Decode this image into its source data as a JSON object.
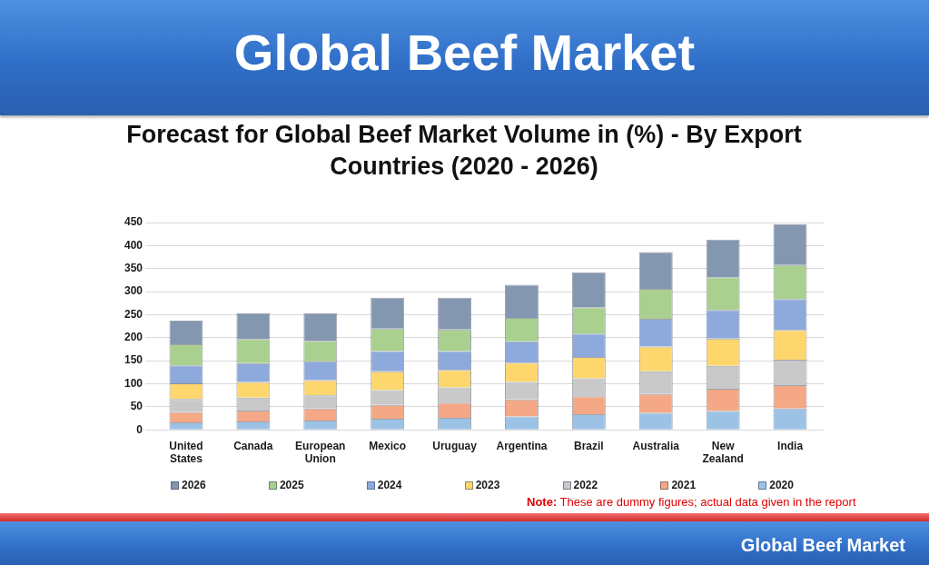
{
  "chart_data": {
    "type": "bar",
    "title": "Global Beef Market",
    "subtitle": "Forecast for Global Beef Market Volume in (%) - By Export Countries (2020 - 2026)",
    "categories": [
      "United States",
      "Canada",
      "European Union",
      "Mexico",
      "Uruguay",
      "Argentina",
      "Brazil",
      "Australia",
      "New Zealand",
      "India"
    ],
    "series": [
      {
        "name": "2020",
        "color": "#9cc3e5",
        "values": [
          16,
          18,
          20,
          24,
          26,
          29,
          34,
          37,
          41,
          46
        ]
      },
      {
        "name": "2021",
        "color": "#f4a886",
        "values": [
          23,
          24,
          26,
          30,
          33,
          37,
          39,
          41,
          48,
          51
        ]
      },
      {
        "name": "2022",
        "color": "#c9c9c9",
        "values": [
          28,
          28,
          29,
          32,
          33,
          38,
          39,
          49,
          50,
          55
        ]
      },
      {
        "name": "2023",
        "color": "#fdd66e",
        "values": [
          34,
          34,
          33,
          41,
          38,
          42,
          46,
          54,
          59,
          65
        ]
      },
      {
        "name": "2024",
        "color": "#8ea9db",
        "values": [
          39,
          41,
          41,
          44,
          41,
          46,
          51,
          60,
          62,
          67
        ]
      },
      {
        "name": "2025",
        "color": "#a9d08e",
        "values": [
          46,
          52,
          44,
          49,
          47,
          51,
          57,
          65,
          71,
          74
        ]
      },
      {
        "name": "2026",
        "color": "#8497b0",
        "values": [
          51,
          56,
          60,
          67,
          69,
          72,
          76,
          80,
          82,
          88
        ]
      }
    ],
    "stacked": true,
    "ylim": [
      0,
      450
    ],
    "yticks": [
      0,
      50,
      100,
      150,
      200,
      250,
      300,
      350,
      400,
      450
    ],
    "grid": "y",
    "legend": "bottom",
    "annotations": [
      "Note: These are dummy figures; actual data given in the report",
      "Global Beef Market"
    ]
  }
}
